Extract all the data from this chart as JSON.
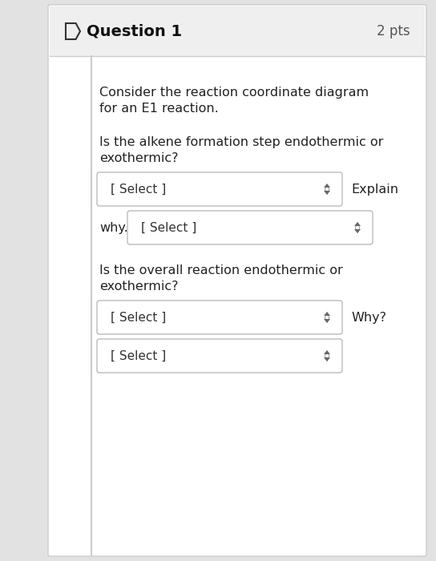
{
  "bg_color": "#ffffff",
  "header_bg": "#efefef",
  "header_text": "Question 1",
  "header_pts": "2 pts",
  "header_text_color": "#111111",
  "pts_color": "#555555",
  "body_text_color": "#222222",
  "border_color": "#cccccc",
  "paragraph1_line1": "Consider the reaction coordinate diagram",
  "paragraph1_line2": "for an E1 reaction.",
  "paragraph2_line1": "Is the alkene formation step endothermic or",
  "paragraph2_line2": "exothermic?",
  "dropdown1_text": "[ Select ]",
  "label1": "Explain",
  "label2": "why.",
  "dropdown2_text": "[ Select ]",
  "paragraph3_line1": "Is the overall reaction endothermic or",
  "paragraph3_line2": "exothermic?",
  "dropdown3_text": "[ Select ]",
  "label3": "Why?",
  "dropdown4_text": "[ Select ]",
  "box_fill": "#ffffff",
  "box_edge": "#bbbbbb",
  "arrow_color": "#666666",
  "page_bg": "#e2e2e2"
}
